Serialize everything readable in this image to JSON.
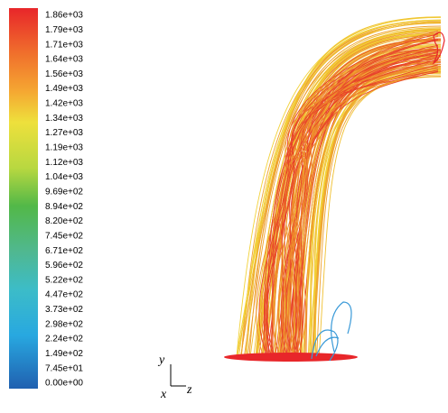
{
  "colorbar": {
    "labels": [
      "1.86e+03",
      "1.79e+03",
      "1.71e+03",
      "1.64e+03",
      "1.56e+03",
      "1.49e+03",
      "1.42e+03",
      "1.34e+03",
      "1.27e+03",
      "1.19e+03",
      "1.12e+03",
      "1.04e+03",
      "9.69e+02",
      "8.94e+02",
      "8.20e+02",
      "7.45e+02",
      "6.71e+02",
      "5.96e+02",
      "5.22e+02",
      "4.47e+02",
      "3.73e+02",
      "2.98e+02",
      "2.24e+02",
      "1.49e+02",
      "7.45e+01",
      "0.00e+00"
    ]
  },
  "axes_triad": {
    "y": "y",
    "x": "x",
    "z": "z"
  }
}
